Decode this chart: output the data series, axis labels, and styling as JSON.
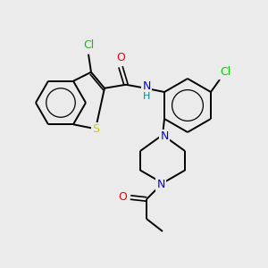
{
  "background_color": "#ebebeb",
  "bond_color": "#000000",
  "atom_colors": {
    "Cl": "#00cc00",
    "S": "#cccc00",
    "N": "#0000ee",
    "O": "#ee0000",
    "H": "#008888",
    "C": "#000000"
  },
  "figsize": [
    3.0,
    3.0
  ],
  "dpi": 100
}
